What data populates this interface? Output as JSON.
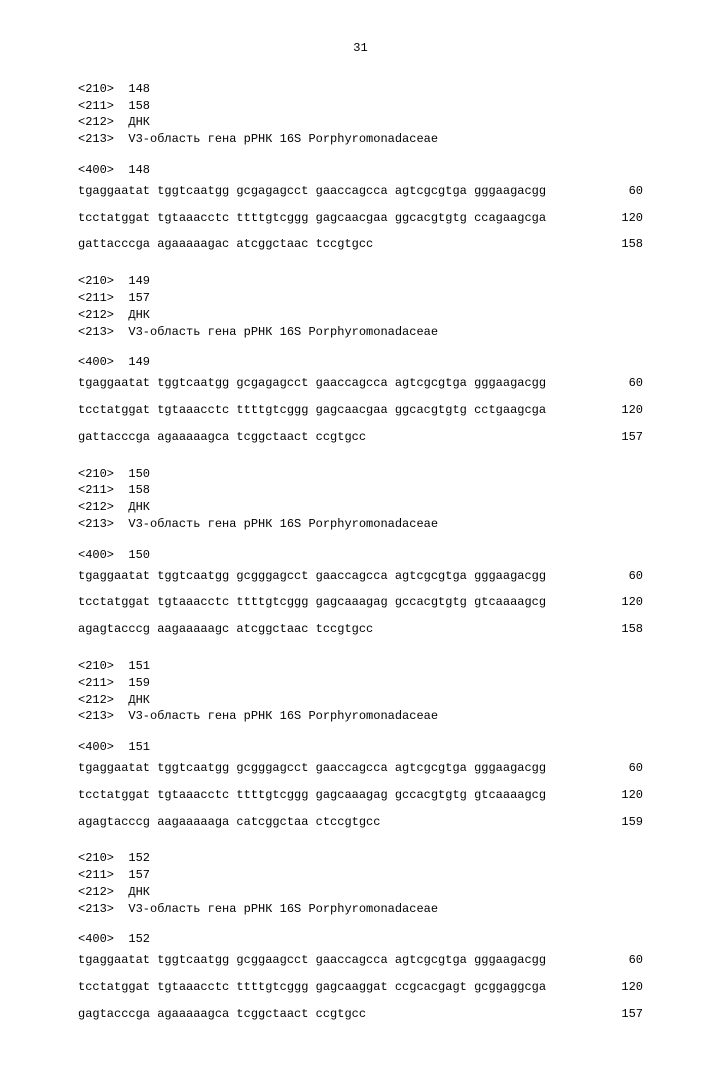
{
  "page_number": "31",
  "font": {
    "family": "Courier New",
    "size_pt": 9,
    "color": "#000000"
  },
  "background_color": "#ffffff",
  "entries": [
    {
      "h210": "148",
      "h211": "158",
      "h212": "ДНК",
      "h213": "V3-область гена рРНК 16S Porphyromonadaceae",
      "h400": "148",
      "lines": [
        {
          "seq": "tgaggaatat tggtcaatgg gcgagagcct gaaccagcca agtcgcgtga gggaagacgg",
          "n": "60"
        },
        {
          "seq": "tcctatggat tgtaaacctc ttttgtcggg gagcaacgaa ggcacgtgtg ccagaagcga",
          "n": "120"
        },
        {
          "seq": "gattacccga agaaaaagac atcggctaac tccgtgcc",
          "n": "158"
        }
      ]
    },
    {
      "h210": "149",
      "h211": "157",
      "h212": "ДНК",
      "h213": "V3-область гена рРНК 16S Porphyromonadaceae",
      "h400": "149",
      "lines": [
        {
          "seq": "tgaggaatat tggtcaatgg gcgagagcct gaaccagcca agtcgcgtga gggaagacgg",
          "n": "60"
        },
        {
          "seq": "tcctatggat tgtaaacctc ttttgtcggg gagcaacgaa ggcacgtgtg cctgaagcga",
          "n": "120"
        },
        {
          "seq": "gattacccga agaaaaagca tcggctaact ccgtgcc",
          "n": "157"
        }
      ]
    },
    {
      "h210": "150",
      "h211": "158",
      "h212": "ДНК",
      "h213": "V3-область гена рРНК 16S Porphyromonadaceae",
      "h400": "150",
      "lines": [
        {
          "seq": "tgaggaatat tggtcaatgg gcgggagcct gaaccagcca agtcgcgtga gggaagacgg",
          "n": "60"
        },
        {
          "seq": "tcctatggat tgtaaacctc ttttgtcggg gagcaaagag gccacgtgtg gtcaaaagcg",
          "n": "120"
        },
        {
          "seq": "agagtacccg aagaaaaagc atcggctaac tccgtgcc",
          "n": "158"
        }
      ]
    },
    {
      "h210": "151",
      "h211": "159",
      "h212": "ДНК",
      "h213": "V3-область гена рРНК 16S Porphyromonadaceae",
      "h400": "151",
      "lines": [
        {
          "seq": "tgaggaatat tggtcaatgg gcgggagcct gaaccagcca agtcgcgtga gggaagacgg",
          "n": "60"
        },
        {
          "seq": "tcctatggat tgtaaacctc ttttgtcggg gagcaaagag gccacgtgtg gtcaaaagcg",
          "n": "120"
        },
        {
          "seq": "agagtacccg aagaaaaaga catcggctaa ctccgtgcc",
          "n": "159"
        }
      ]
    },
    {
      "h210": "152",
      "h211": "157",
      "h212": "ДНК",
      "h213": "V3-область гена рРНК 16S Porphyromonadaceae",
      "h400": "152",
      "lines": [
        {
          "seq": "tgaggaatat tggtcaatgg gcggaagcct gaaccagcca agtcgcgtga gggaagacgg",
          "n": "60"
        },
        {
          "seq": "tcctatggat tgtaaacctc ttttgtcggg gagcaaggat ccgcacgagt gcggaggcga",
          "n": "120"
        },
        {
          "seq": "gagtacccga agaaaaagca tcggctaact ccgtgcc",
          "n": "157"
        }
      ]
    }
  ],
  "labels": {
    "l210": "<210>",
    "l211": "<211>",
    "l212": "<212>",
    "l213": "<213>",
    "l400": "<400>"
  }
}
